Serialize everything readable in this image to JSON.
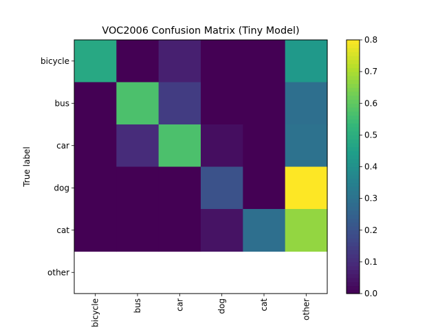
{
  "chart_data": {
    "type": "heatmap",
    "title": "VOC2006 Confusion Matrix (Tiny Model)",
    "ylabel": "True label",
    "xlabel": "",
    "x_categories": [
      "bicycle",
      "bus",
      "car",
      "dog",
      "cat",
      "other"
    ],
    "y_categories": [
      "bicycle",
      "bus",
      "car",
      "dog",
      "cat",
      "other"
    ],
    "matrix": [
      [
        0.48,
        0.0,
        0.07,
        0.0,
        0.0,
        0.43
      ],
      [
        0.0,
        0.57,
        0.14,
        0.0,
        0.0,
        0.29
      ],
      [
        0.0,
        0.1,
        0.57,
        0.03,
        0.0,
        0.3
      ],
      [
        0.0,
        0.0,
        0.0,
        0.2,
        0.0,
        0.8
      ],
      [
        0.0,
        0.0,
        0.0,
        0.04,
        0.29,
        0.67
      ],
      [
        null,
        null,
        null,
        null,
        null,
        null
      ]
    ],
    "colormap": "viridis",
    "colorbar": {
      "vmin": 0.0,
      "vmax": 0.8,
      "ticks": [
        "0.0",
        "0.1",
        "0.2",
        "0.3",
        "0.4",
        "0.5",
        "0.6",
        "0.7",
        "0.8"
      ]
    },
    "x_tick_rotation": "vertical",
    "grid": false,
    "legend": "none"
  }
}
